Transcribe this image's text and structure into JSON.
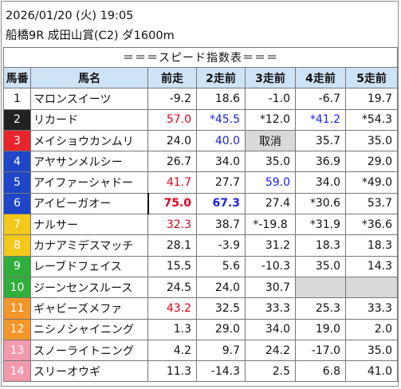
{
  "header": {
    "date_line": "2026/01/20 (火) 19:05",
    "race_line": "船橋9R 成田山賞(C2) ダ1600m"
  },
  "table": {
    "title": "＝＝＝スピード指数表＝＝＝",
    "columns": [
      "馬番",
      "馬名",
      "前走",
      "2走前",
      "3走前",
      "4走前",
      "5走前"
    ],
    "rows": [
      {
        "num": "1",
        "num_color": "#ffffff",
        "num_text": "#111111",
        "name": "マロンスイーツ",
        "vals": [
          {
            "t": "-9.2"
          },
          {
            "t": "18.6"
          },
          {
            "t": "-1.0"
          },
          {
            "t": "-6.7"
          },
          {
            "t": "19.7"
          }
        ]
      },
      {
        "num": "2",
        "num_color": "#222222",
        "num_text": "#ffffff",
        "name": "リカード",
        "vals": [
          {
            "t": "57.0",
            "c": "red"
          },
          {
            "t": "*45.5",
            "c": "blue"
          },
          {
            "t": "*12.0"
          },
          {
            "t": "*41.2",
            "c": "blue"
          },
          {
            "t": "*54.3"
          }
        ]
      },
      {
        "num": "3",
        "num_color": "#e8242c",
        "num_text": "#ffffff",
        "name": "メイショウカンムリ",
        "vals": [
          {
            "t": "24.0"
          },
          {
            "t": "40.0",
            "c": "blue"
          },
          {
            "t": "取消",
            "grey": true
          },
          {
            "t": "35.7"
          },
          {
            "t": "35.0"
          }
        ]
      },
      {
        "num": "4",
        "num_color": "#1f46c8",
        "num_text": "#ffffff",
        "name": "アヤサンメルシー",
        "vals": [
          {
            "t": "26.7"
          },
          {
            "t": "34.0"
          },
          {
            "t": "35.0"
          },
          {
            "t": "36.9"
          },
          {
            "t": "29.0"
          }
        ]
      },
      {
        "num": "5",
        "num_color": "#1f46c8",
        "num_text": "#ffffff",
        "name": "アイファーシャドー",
        "vals": [
          {
            "t": "41.7",
            "c": "red"
          },
          {
            "t": "27.7"
          },
          {
            "t": "59.0",
            "c": "blue"
          },
          {
            "t": "34.0"
          },
          {
            "t": "*49.0"
          }
        ]
      },
      {
        "num": "6",
        "num_color": "#1f46c8",
        "num_text": "#ffffff",
        "name": "アイビーガオー",
        "vals": [
          {
            "t": "75.0",
            "c": "red",
            "b": true
          },
          {
            "t": "67.3",
            "c": "blue",
            "b": true
          },
          {
            "t": "27.4"
          },
          {
            "t": "*30.6"
          },
          {
            "t": "53.7"
          }
        ]
      },
      {
        "num": "7",
        "num_color": "#f2c81a",
        "num_text": "#ffffff",
        "name": "ナルサー",
        "vals": [
          {
            "t": "32.3",
            "c": "red"
          },
          {
            "t": "38.7"
          },
          {
            "t": "*-19.8"
          },
          {
            "t": "*31.9"
          },
          {
            "t": "*36.6"
          }
        ]
      },
      {
        "num": "8",
        "num_color": "#f2c81a",
        "num_text": "#ffffff",
        "name": "カナアミデスマッチ",
        "vals": [
          {
            "t": "28.1"
          },
          {
            "t": "-3.9"
          },
          {
            "t": "31.2"
          },
          {
            "t": "18.3"
          },
          {
            "t": "18.3"
          }
        ]
      },
      {
        "num": "9",
        "num_color": "#2fae3a",
        "num_text": "#ffffff",
        "name": "レーブドフェイス",
        "vals": [
          {
            "t": "15.5"
          },
          {
            "t": "5.6"
          },
          {
            "t": "-10.3"
          },
          {
            "t": "35.0"
          },
          {
            "t": "14.3"
          }
        ]
      },
      {
        "num": "10",
        "num_color": "#2fae3a",
        "num_text": "#ffffff",
        "name": "ジーンセンスルース",
        "vals": [
          {
            "t": "24.5"
          },
          {
            "t": "24.0"
          },
          {
            "t": "30.7"
          },
          {
            "t": "",
            "grey": true
          },
          {
            "t": "",
            "grey": true
          }
        ]
      },
      {
        "num": "11",
        "num_color": "#f5962a",
        "num_text": "#ffffff",
        "name": "ギャビーズメファ",
        "vals": [
          {
            "t": "43.2",
            "c": "red"
          },
          {
            "t": "32.5"
          },
          {
            "t": "33.3"
          },
          {
            "t": "25.3"
          },
          {
            "t": "33.3"
          }
        ]
      },
      {
        "num": "12",
        "num_color": "#f5962a",
        "num_text": "#ffffff",
        "name": "ニシノシャイニング",
        "vals": [
          {
            "t": "1.3"
          },
          {
            "t": "29.0"
          },
          {
            "t": "34.0"
          },
          {
            "t": "19.0"
          },
          {
            "t": "2.0"
          }
        ]
      },
      {
        "num": "13",
        "num_color": "#f29aac",
        "num_text": "#ffffff",
        "name": "スノーライトニング",
        "vals": [
          {
            "t": "4.2"
          },
          {
            "t": "9.7"
          },
          {
            "t": "24.2"
          },
          {
            "t": "-17.0"
          },
          {
            "t": "35.0"
          }
        ]
      },
      {
        "num": "14",
        "num_color": "#f29aac",
        "num_text": "#ffffff",
        "name": "スリーオウギ",
        "vals": [
          {
            "t": "11.3"
          },
          {
            "t": "-14.3"
          },
          {
            "t": "2.5"
          },
          {
            "t": "6.8"
          },
          {
            "t": "41.0"
          }
        ]
      }
    ]
  }
}
